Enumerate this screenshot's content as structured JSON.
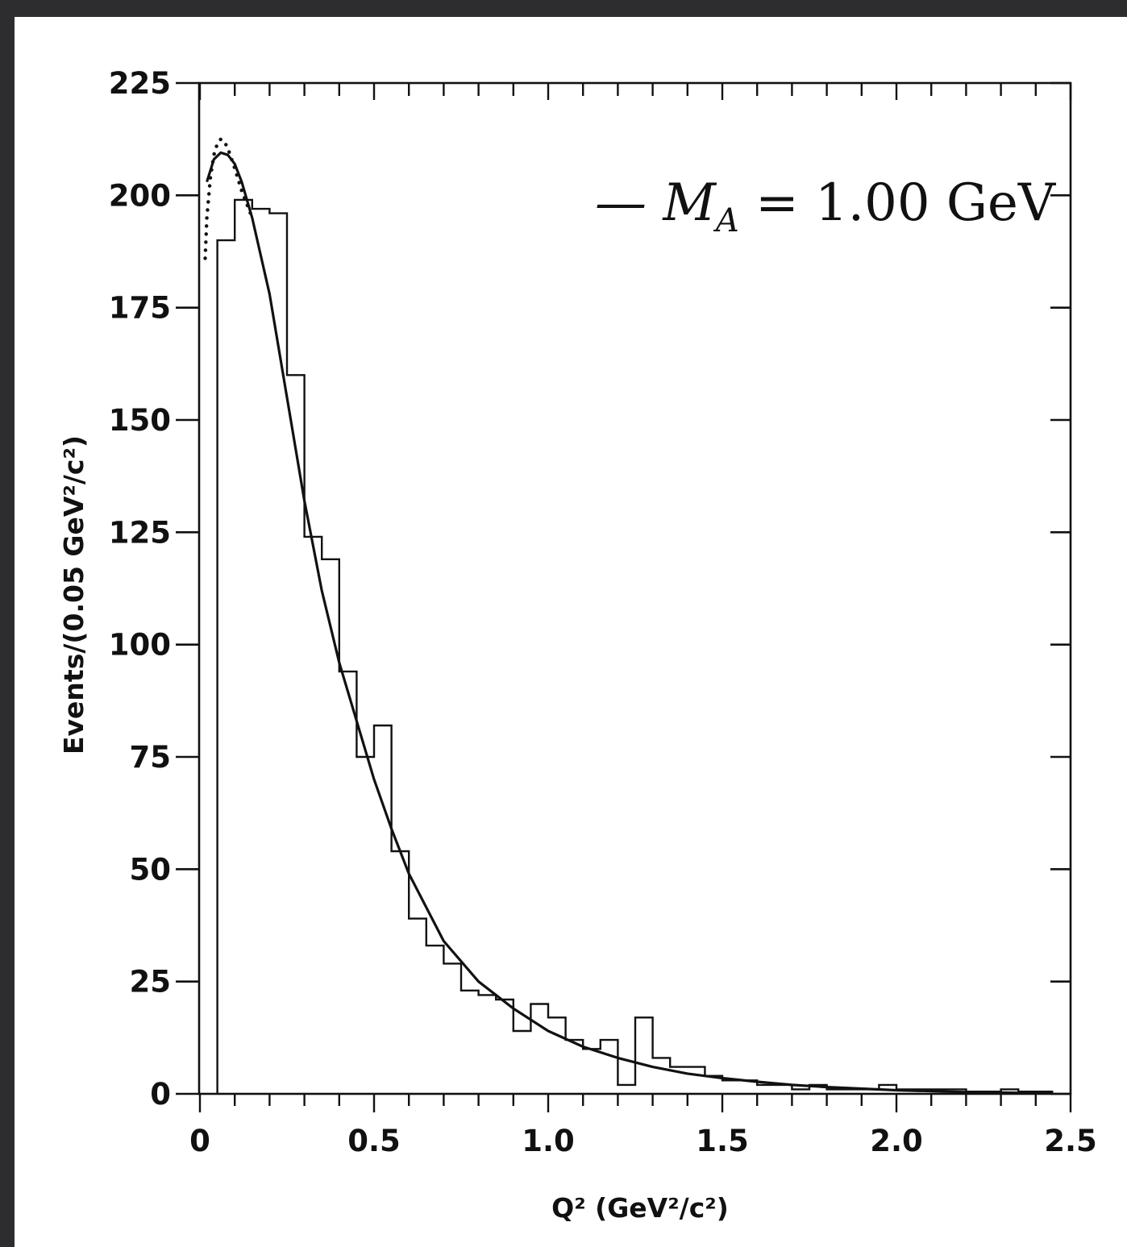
{
  "chart_data": {
    "type": "bar",
    "subtype": "histogram-with-fit-curves",
    "xlabel": "Q² (GeV²/c²)",
    "ylabel": "Events/(0.05 GeV²/c²)",
    "xlim": [
      0,
      2.5
    ],
    "ylim": [
      0,
      225
    ],
    "xticks": [
      0,
      0.5,
      1.0,
      1.5,
      2.0,
      2.5
    ],
    "xtick_labels": [
      "0",
      "0.5",
      "1.0",
      "1.5",
      "2.0",
      "2.5"
    ],
    "yticks": [
      0,
      25,
      50,
      75,
      100,
      125,
      150,
      175,
      200,
      225
    ],
    "ytick_labels": [
      "0",
      "25",
      "50",
      "75",
      "100",
      "125",
      "150",
      "175",
      "200",
      "225"
    ],
    "grid": false,
    "legend": {
      "position": "top-right",
      "text": "— M_A = 1.00 GeV",
      "prefix": "— M",
      "subscript": "A",
      "suffix": " = 1.00 GeV"
    },
    "histogram": {
      "bin_width": 0.05,
      "bin_edges": [
        0.05,
        0.1,
        0.15,
        0.2,
        0.25,
        0.3,
        0.35,
        0.4,
        0.45,
        0.5,
        0.55,
        0.6,
        0.65,
        0.7,
        0.75,
        0.8,
        0.85,
        0.9,
        0.95,
        1.0,
        1.05,
        1.1,
        1.15,
        1.2,
        1.25,
        1.3,
        1.35,
        1.4,
        1.45,
        1.5,
        1.55,
        1.6,
        1.65,
        1.7,
        1.75,
        1.8,
        1.85,
        1.9,
        1.95,
        2.0,
        2.05,
        2.1,
        2.15,
        2.2,
        2.25,
        2.3,
        2.35,
        2.4,
        2.45
      ],
      "values": [
        190,
        199,
        197,
        196,
        160,
        124,
        119,
        94,
        75,
        82,
        54,
        39,
        33,
        29,
        23,
        22,
        21,
        14,
        20,
        17,
        12,
        10,
        12,
        2,
        17,
        8,
        6,
        6,
        4,
        3,
        3,
        2,
        2,
        1,
        2,
        1,
        1,
        1,
        2,
        1,
        1,
        1,
        1,
        0.5,
        0.5,
        1,
        0.5,
        0.5
      ]
    },
    "series": [
      {
        "style": "solid",
        "x": [
          0.02,
          0.04,
          0.06,
          0.08,
          0.1,
          0.12,
          0.15,
          0.2,
          0.25,
          0.3,
          0.35,
          0.4,
          0.45,
          0.5,
          0.55,
          0.6,
          0.7,
          0.8,
          0.9,
          1.0,
          1.1,
          1.2,
          1.3,
          1.4,
          1.5,
          1.6,
          1.7,
          1.8,
          2.0,
          2.2,
          2.45
        ],
        "values": [
          203,
          208,
          209.5,
          209,
          207,
          203,
          195,
          178,
          155,
          132,
          112,
          96,
          83,
          70,
          59,
          49,
          34,
          25,
          19,
          14,
          10.5,
          8,
          6,
          4.5,
          3.5,
          2.7,
          2,
          1.5,
          0.8,
          0.4,
          0.1
        ]
      },
      {
        "style": "dotted",
        "x": [
          0.015,
          0.02,
          0.03,
          0.04,
          0.05,
          0.06,
          0.07,
          0.08,
          0.1,
          0.12,
          0.15
        ],
        "values": [
          186,
          195,
          204,
          209,
          211.5,
          212.5,
          212,
          210.5,
          206,
          201,
          195
        ]
      }
    ]
  }
}
